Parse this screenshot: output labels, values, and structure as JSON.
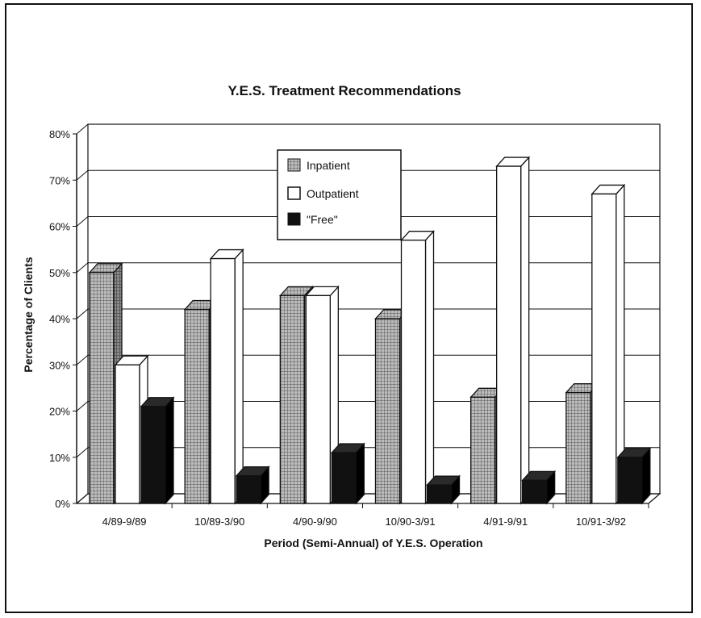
{
  "chart_data": {
    "type": "bar",
    "title": "Y.E.S. Treatment Recommendations",
    "xlabel": "Period (Semi-Annual) of Y.E.S. Operation",
    "ylabel": "Percentage of Clients",
    "categories": [
      "4/89-9/89",
      "10/89-3/90",
      "4/90-9/90",
      "10/90-3/91",
      "4/91-9/91",
      "10/91-3/92"
    ],
    "series": [
      {
        "name": "Inpatient",
        "values": [
          50,
          42,
          45,
          40,
          23,
          24
        ],
        "color": "#8a8a8a",
        "pattern": "grid"
      },
      {
        "name": "Outpatient",
        "values": [
          30,
          53,
          45,
          57,
          73,
          67
        ],
        "color": "#ffffff"
      },
      {
        "name": "\"Free\"",
        "values": [
          21,
          6,
          11,
          4,
          5,
          10
        ],
        "color": "#111111"
      }
    ],
    "ylim": [
      0,
      80
    ],
    "yticks": [
      "0%",
      "10%",
      "20%",
      "30%",
      "40%",
      "50%",
      "60%",
      "70%",
      "80%"
    ],
    "grid": true,
    "legend_position": "top-center",
    "style": "3d"
  }
}
